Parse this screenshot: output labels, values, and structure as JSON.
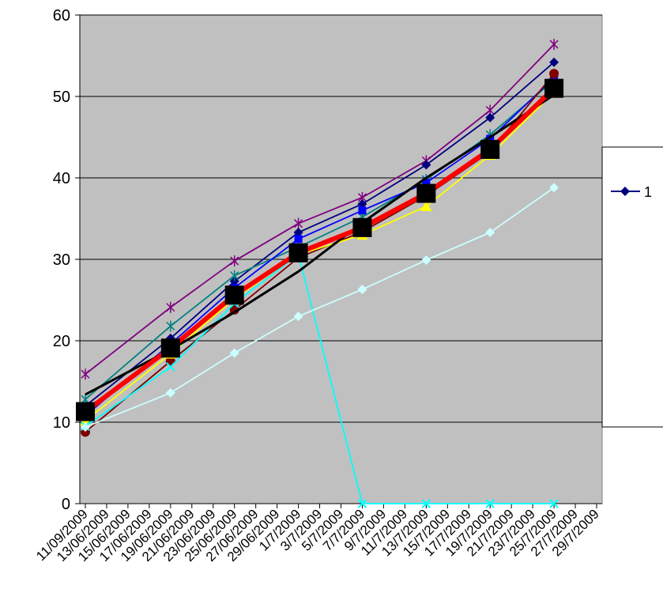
{
  "chart_data": {
    "type": "line",
    "x": [
      "11/09/2009",
      "13/06/2009",
      "15/06/2009",
      "17/06/2009",
      "19/06/2009",
      "21/06/2009",
      "23/06/2009",
      "25/06/2009",
      "27/06/2009",
      "29/06/2009",
      "1/7/2009",
      "3/7/2009",
      "5/7/2009",
      "7/7/2009",
      "9/7/2009",
      "11/7/2009",
      "13/7/2009",
      "15/7/2009",
      "17/7/2009",
      "19/7/2009",
      "21/7/2009",
      "23/7/2009",
      "25/7/2009",
      "27/7/2009",
      "29/7/2009"
    ],
    "ylim": [
      0,
      60
    ],
    "yticks": [
      0,
      10,
      20,
      30,
      40,
      50,
      60
    ],
    "grid": "horizontal",
    "legend": {
      "position": "right",
      "visible_label": "1"
    },
    "series": [
      {
        "color": "#7f007f",
        "marker": "star",
        "values": [
          15.9,
          null,
          null,
          null,
          24.1,
          null,
          null,
          29.8,
          null,
          null,
          34.4,
          null,
          null,
          37.6,
          null,
          null,
          42.1,
          null,
          null,
          48.3,
          null,
          null,
          56.4,
          null,
          null
        ]
      },
      {
        "color": "#00007f",
        "marker": "diamond",
        "values": [
          12.0,
          null,
          null,
          null,
          20.3,
          null,
          null,
          27.3,
          null,
          null,
          33.3,
          null,
          null,
          36.8,
          null,
          null,
          41.6,
          null,
          null,
          47.4,
          null,
          null,
          54.2,
          null,
          null
        ]
      },
      {
        "color": "#008080",
        "marker": "star",
        "values": [
          12.8,
          null,
          null,
          null,
          21.8,
          null,
          null,
          28.0,
          null,
          null,
          31.5,
          null,
          null,
          35.2,
          null,
          null,
          39.8,
          null,
          null,
          45.3,
          null,
          null,
          52.0,
          null,
          null
        ]
      },
      {
        "color": "#0000ff",
        "marker": "square",
        "values": [
          10.8,
          null,
          null,
          null,
          19.6,
          null,
          null,
          26.5,
          null,
          null,
          32.5,
          null,
          null,
          36.0,
          null,
          null,
          39.4,
          null,
          null,
          44.8,
          null,
          null,
          52.3,
          null,
          null
        ]
      },
      {
        "color": "#800000",
        "marker": "circle",
        "values": [
          8.8,
          null,
          null,
          null,
          17.5,
          null,
          null,
          23.8,
          null,
          null,
          30.2,
          null,
          null,
          33.4,
          null,
          null,
          37.8,
          null,
          null,
          43.2,
          null,
          null,
          52.8,
          null,
          null
        ]
      },
      {
        "color": "#ffff00",
        "marker": "triangle",
        "values": [
          10.2,
          null,
          null,
          null,
          18.4,
          null,
          null,
          25.2,
          null,
          null,
          30.6,
          null,
          null,
          33.0,
          null,
          null,
          36.5,
          null,
          null,
          42.8,
          null,
          null,
          50.5,
          null,
          null
        ]
      },
      {
        "color": "#00ffff",
        "marker": "x",
        "values": [
          9.5,
          null,
          null,
          null,
          16.8,
          null,
          null,
          24.6,
          null,
          null,
          30.6,
          null,
          null,
          0,
          null,
          null,
          0,
          null,
          null,
          0,
          null,
          null,
          0,
          null,
          null
        ]
      },
      {
        "color": "#ccffff",
        "marker": "diamond",
        "values": [
          9.4,
          null,
          null,
          null,
          13.6,
          null,
          null,
          18.5,
          null,
          null,
          23.0,
          null,
          null,
          26.3,
          null,
          null,
          29.9,
          null,
          null,
          33.3,
          null,
          null,
          38.8,
          null,
          null
        ]
      },
      {
        "color": "#000000",
        "marker": "none",
        "values": [
          13.4,
          null,
          null,
          null,
          18.9,
          null,
          null,
          23.5,
          null,
          null,
          28.5,
          null,
          null,
          34.5,
          null,
          null,
          40.0,
          null,
          null,
          45.0,
          null,
          null,
          50.2,
          null,
          null
        ]
      },
      {
        "color": "#ff0000",
        "marker": "square-black",
        "values": [
          11.3,
          null,
          null,
          null,
          19.1,
          null,
          null,
          25.6,
          null,
          null,
          30.8,
          null,
          null,
          33.9,
          null,
          null,
          38.1,
          null,
          null,
          43.5,
          null,
          null,
          51.0,
          null,
          null
        ]
      }
    ]
  }
}
